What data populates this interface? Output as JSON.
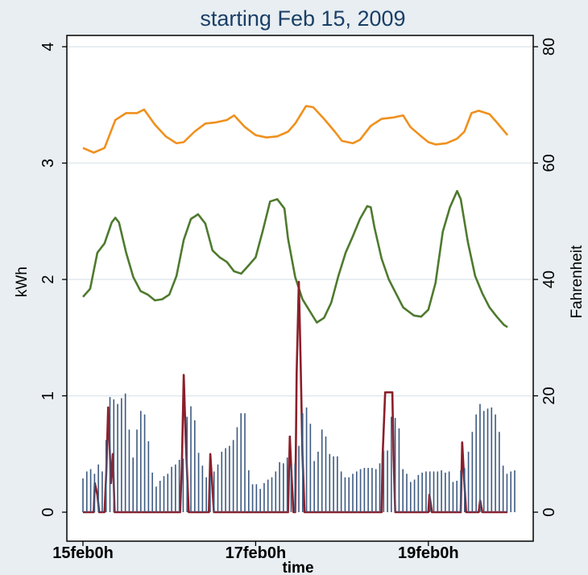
{
  "chart_data": {
    "type": "line",
    "title": "starting Feb 15, 2009",
    "xlabel": "time",
    "ylabel": "kWh",
    "y2label": "Fahrenheit",
    "x_ticks": [
      {
        "label": "15feb0h",
        "value": 0
      },
      {
        "label": "17feb0h",
        "value": 48
      },
      {
        "label": "19feb0h",
        "value": 96
      }
    ],
    "xlim": [
      0,
      120
    ],
    "y_ticks": [
      "0",
      "1",
      "2",
      "3",
      "4"
    ],
    "ylim": [
      0,
      4
    ],
    "y2_ticks": [
      "0",
      "20",
      "40",
      "60",
      "80"
    ],
    "y2lim": [
      0,
      80
    ],
    "grid": true,
    "legend": "none",
    "background": "#e8eef2",
    "series": [
      {
        "axis": "right",
        "color": "#f0901e",
        "points": [
          [
            0,
            62.6
          ],
          [
            3,
            61.8
          ],
          [
            6,
            62.6
          ],
          [
            9,
            67.4
          ],
          [
            12,
            68.6
          ],
          [
            15,
            68.6
          ],
          [
            17,
            69.2
          ],
          [
            20,
            66.6
          ],
          [
            23,
            64.6
          ],
          [
            26,
            63.4
          ],
          [
            28,
            63.6
          ],
          [
            31,
            65.4
          ],
          [
            34,
            66.8
          ],
          [
            37,
            67.0
          ],
          [
            40,
            67.4
          ],
          [
            42,
            68.2
          ],
          [
            45,
            66.2
          ],
          [
            48,
            64.8
          ],
          [
            51,
            64.4
          ],
          [
            54,
            64.6
          ],
          [
            57,
            65.4
          ],
          [
            59,
            66.8
          ],
          [
            62,
            69.8
          ],
          [
            64,
            69.6
          ],
          [
            67,
            67.6
          ],
          [
            70,
            65.4
          ],
          [
            72,
            63.8
          ],
          [
            75,
            63.4
          ],
          [
            77,
            64.0
          ],
          [
            80,
            66.4
          ],
          [
            83,
            67.6
          ],
          [
            86,
            67.8
          ],
          [
            89,
            68.2
          ],
          [
            91,
            66.2
          ],
          [
            94,
            64.6
          ],
          [
            96,
            63.6
          ],
          [
            98,
            63.2
          ],
          [
            101,
            63.4
          ],
          [
            104,
            64.2
          ],
          [
            106,
            65.4
          ],
          [
            108,
            68.6
          ],
          [
            110,
            69.0
          ],
          [
            113,
            68.4
          ],
          [
            115,
            67.0
          ],
          [
            118,
            64.8
          ]
        ]
      },
      {
        "axis": "right",
        "color": "#4e7a2e",
        "points": [
          [
            0,
            37.0
          ],
          [
            2,
            38.4
          ],
          [
            4,
            44.6
          ],
          [
            6,
            46.2
          ],
          [
            8,
            49.8
          ],
          [
            9,
            50.6
          ],
          [
            10,
            49.8
          ],
          [
            12,
            44.6
          ],
          [
            14,
            40.4
          ],
          [
            16,
            38.0
          ],
          [
            18,
            37.4
          ],
          [
            20,
            36.4
          ],
          [
            22,
            36.6
          ],
          [
            24,
            37.4
          ],
          [
            26,
            40.6
          ],
          [
            28,
            46.8
          ],
          [
            30,
            50.4
          ],
          [
            32,
            51.2
          ],
          [
            34,
            49.6
          ],
          [
            36,
            45.0
          ],
          [
            38,
            43.8
          ],
          [
            40,
            43.0
          ],
          [
            42,
            41.4
          ],
          [
            44,
            41.0
          ],
          [
            46,
            42.4
          ],
          [
            48,
            43.8
          ],
          [
            50,
            48.4
          ],
          [
            52,
            53.4
          ],
          [
            54,
            53.8
          ],
          [
            56,
            52.2
          ],
          [
            57,
            47.0
          ],
          [
            59,
            40.4
          ],
          [
            61,
            36.6
          ],
          [
            63,
            34.6
          ],
          [
            65,
            32.6
          ],
          [
            67,
            33.4
          ],
          [
            69,
            36.0
          ],
          [
            71,
            40.6
          ],
          [
            73,
            44.6
          ],
          [
            75,
            47.4
          ],
          [
            77,
            50.4
          ],
          [
            79,
            52.6
          ],
          [
            80,
            52.4
          ],
          [
            81,
            49.0
          ],
          [
            83,
            43.6
          ],
          [
            85,
            40.0
          ],
          [
            87,
            37.6
          ],
          [
            89,
            35.2
          ],
          [
            92,
            33.8
          ],
          [
            94,
            33.6
          ],
          [
            96,
            34.8
          ],
          [
            98,
            39.4
          ],
          [
            100,
            48.2
          ],
          [
            102,
            52.4
          ],
          [
            104,
            55.2
          ],
          [
            105,
            53.8
          ],
          [
            107,
            46.4
          ],
          [
            109,
            40.6
          ],
          [
            111,
            37.6
          ],
          [
            113,
            35.2
          ],
          [
            115,
            33.6
          ],
          [
            117,
            32.2
          ],
          [
            118,
            31.8
          ]
        ]
      },
      {
        "axis": "left",
        "color": "#8b1f2a",
        "points": [
          [
            0,
            0
          ],
          [
            3,
            0
          ],
          [
            3.3,
            0.25
          ],
          [
            4,
            0.15
          ],
          [
            4.5,
            0
          ],
          [
            6,
            0
          ],
          [
            6.5,
            0.35
          ],
          [
            7,
            0.9
          ],
          [
            7.8,
            0.25
          ],
          [
            8.3,
            0.5
          ],
          [
            8.8,
            0
          ],
          [
            27,
            0
          ],
          [
            27.5,
            0.4
          ],
          [
            28,
            1.18
          ],
          [
            28.6,
            0.6
          ],
          [
            29,
            0.3
          ],
          [
            29.4,
            0
          ],
          [
            35,
            0
          ],
          [
            35.4,
            0.5
          ],
          [
            36,
            0.2
          ],
          [
            36.4,
            0
          ],
          [
            57,
            0
          ],
          [
            57.5,
            0.65
          ],
          [
            58,
            0.3
          ],
          [
            58.5,
            0
          ],
          [
            59,
            0
          ],
          [
            59.4,
            1.2
          ],
          [
            60,
            1.98
          ],
          [
            60.5,
            1.3
          ],
          [
            61,
            0.5
          ],
          [
            61.6,
            0
          ],
          [
            83,
            0
          ],
          [
            83.3,
            0.5
          ],
          [
            84,
            1.03
          ],
          [
            86,
            1.03
          ],
          [
            86.3,
            0.5
          ],
          [
            86.8,
            0
          ],
          [
            96,
            0
          ],
          [
            96.3,
            0.15
          ],
          [
            97,
            0
          ],
          [
            105,
            0
          ],
          [
            105.4,
            0.6
          ],
          [
            106,
            0.25
          ],
          [
            106.5,
            0
          ],
          [
            110,
            0
          ],
          [
            110.4,
            0.1
          ],
          [
            111,
            0
          ],
          [
            118,
            0
          ]
        ]
      },
      {
        "axis": "left",
        "color": "#3d5a80",
        "bars": [
          0.29,
          0.35,
          0.37,
          0.33,
          0.41,
          0.35,
          0.62,
          0.99,
          0.97,
          0.93,
          0.98,
          1.02,
          0.71,
          0.47,
          0.71,
          0.87,
          0.84,
          0.61,
          0.34,
          0.22,
          0.27,
          0.31,
          0.33,
          0.39,
          0.41,
          0.45,
          0.46,
          0.82,
          0.91,
          0.79,
          0.51,
          0.4,
          0.3,
          0.31,
          0.35,
          0.41,
          0.52,
          0.55,
          0.57,
          0.62,
          0.73,
          0.85,
          0.85,
          0.36,
          0.24,
          0.24,
          0.2,
          0.25,
          0.28,
          0.3,
          0.35,
          0.43,
          0.42,
          0.47,
          0.4,
          0.42,
          0.57,
          0.85,
          0.9,
          0.76,
          0.44,
          0.52,
          0.71,
          0.65,
          0.5,
          0.48,
          0.48,
          0.35,
          0.3,
          0.3,
          0.33,
          0.35,
          0.37,
          0.38,
          0.38,
          0.38,
          0.37,
          0.42,
          0.53,
          0.53,
          0.82,
          0.81,
          0.72,
          0.37,
          0.33,
          0.26,
          0.28,
          0.32,
          0.34,
          0.35,
          0.35,
          0.35,
          0.35,
          0.36,
          0.34,
          0.35,
          0.26,
          0.27,
          0.36,
          0.38,
          0.52,
          0.69,
          0.84,
          0.93,
          0.87,
          0.89,
          0.9,
          0.84,
          0.69,
          0.4,
          0.33,
          0.35,
          0.36
        ]
      }
    ]
  }
}
